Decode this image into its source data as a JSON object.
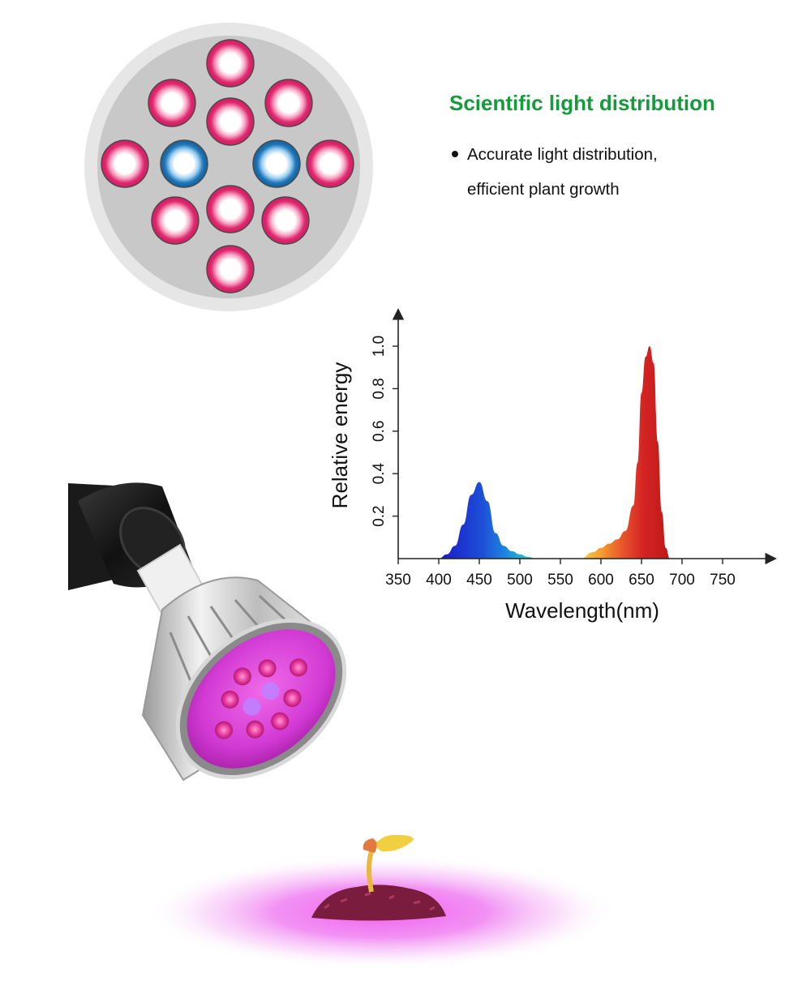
{
  "info": {
    "heading": "Scientific light distribution",
    "bullet_line_1": "Accurate light distribution,",
    "bullet_line_2": "efficient plant growth"
  },
  "led_layout": {
    "leds": [
      {
        "color": "red"
      },
      {
        "color": "red"
      },
      {
        "color": "red"
      },
      {
        "color": "red"
      },
      {
        "color": "red"
      },
      {
        "color": "blue"
      },
      {
        "color": "blue"
      },
      {
        "color": "red"
      },
      {
        "color": "red"
      },
      {
        "color": "red"
      },
      {
        "color": "red"
      },
      {
        "color": "red"
      }
    ],
    "red_count": 10,
    "blue_count": 2,
    "red_hex": "#e0286e",
    "blue_hex": "#1d76b8",
    "plate_hex": "#c8c8c8",
    "rim_hex": "#e6e6e6"
  },
  "chart_data": {
    "type": "area",
    "title": "",
    "xlabel": "Wavelength(nm)",
    "ylabel": "Relative energy",
    "xlim": [
      350,
      800
    ],
    "ylim": [
      0,
      1.0
    ],
    "x_ticks": [
      "350",
      "400",
      "450",
      "500",
      "550",
      "600",
      "650",
      "700",
      "750"
    ],
    "y_ticks": [
      "0.2",
      "0.4",
      "0.6",
      "0.8",
      "1.0"
    ],
    "grid": false,
    "series": [
      {
        "x": [
          400,
          410,
          420,
          430,
          440,
          450,
          460,
          470,
          480,
          490,
          500,
          510,
          520
        ],
        "y": [
          0.0,
          0.02,
          0.06,
          0.16,
          0.3,
          0.36,
          0.27,
          0.12,
          0.06,
          0.035,
          0.02,
          0.008,
          0.0
        ],
        "colors": [
          "#1a18c8",
          "#1d76e0",
          "#30c8c8"
        ]
      },
      {
        "x": [
          575,
          590,
          600,
          610,
          620,
          630,
          640,
          645,
          650,
          655,
          660,
          665,
          670,
          675,
          680,
          685
        ],
        "y": [
          0.0,
          0.03,
          0.05,
          0.07,
          0.09,
          0.13,
          0.25,
          0.45,
          0.78,
          0.95,
          1.0,
          0.92,
          0.55,
          0.22,
          0.05,
          0.0
        ],
        "colors": [
          "#f4c23c",
          "#f08a2a",
          "#e33b2a",
          "#c81c1c"
        ]
      }
    ]
  }
}
